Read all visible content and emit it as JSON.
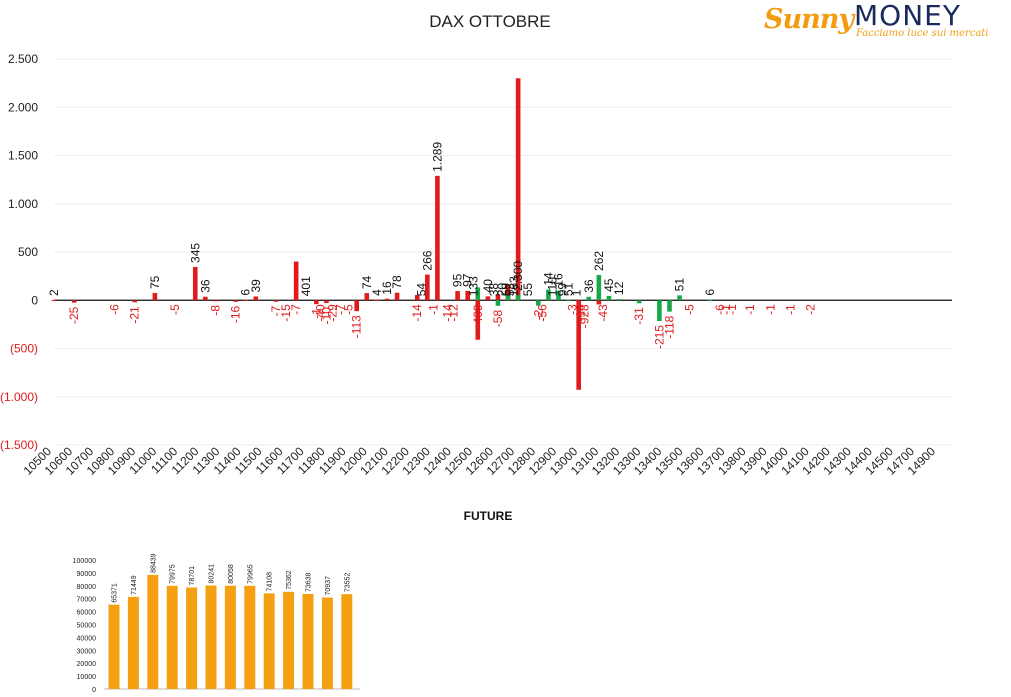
{
  "title": "DAX OTTOBRE",
  "logo": {
    "brand_a": "Sunny",
    "brand_b": "MONEY",
    "tagline": "Facciamo luce sui mercati"
  },
  "colors": {
    "call": "#e01b1b",
    "put": "#18a84a",
    "future_bar": "#f5a011"
  },
  "chart_data": [
    {
      "type": "bar",
      "title": "DAX OTTOBRE",
      "ylim": [
        -1500,
        2500
      ],
      "y_ticks": [
        2500,
        2000,
        1500,
        1000,
        500,
        0,
        -500,
        -1000,
        -1500
      ],
      "y_tick_labels": [
        "2.500",
        "2.000",
        "1.500",
        "1.000",
        "500",
        "0",
        "(500)",
        "(1.000)",
        "(1.500)"
      ],
      "x_tick_labels": [
        "10500",
        "10600",
        "10700",
        "10800",
        "10900",
        "11000",
        "11100",
        "11200",
        "11300",
        "11400",
        "11500",
        "11600",
        "11700",
        "11800",
        "11900",
        "12000",
        "12100",
        "12200",
        "12300",
        "12400",
        "12500",
        "12600",
        "12700",
        "12800",
        "12900",
        "13000",
        "13100",
        "13200",
        "13300",
        "13400",
        "13500",
        "13600",
        "13700",
        "13800",
        "13900",
        "14000",
        "14100",
        "14200",
        "14300",
        "14400",
        "14500",
        "14700",
        "14900"
      ],
      "grid": true,
      "series": [
        {
          "color": "#e01b1b",
          "points": [
            {
              "x": 10500,
              "y": 2
            },
            {
              "x": 10600,
              "y": -25
            },
            {
              "x": 10900,
              "y": -21
            },
            {
              "x": 11000,
              "y": 75
            },
            {
              "x": 11200,
              "y": 345
            },
            {
              "x": 11250,
              "y": 36
            },
            {
              "x": 11300,
              "y": -8
            },
            {
              "x": 11400,
              "y": -16
            },
            {
              "x": 11450,
              "y": 6
            },
            {
              "x": 11500,
              "y": 39
            },
            {
              "x": 11600,
              "y": -15
            },
            {
              "x": 11700,
              "y": 401
            },
            {
              "x": 11800,
              "y": -40
            },
            {
              "x": 11850,
              "y": -29
            },
            {
              "x": 12000,
              "y": -113
            },
            {
              "x": 12050,
              "y": 74
            },
            {
              "x": 12100,
              "y": 4
            },
            {
              "x": 12150,
              "y": 16
            },
            {
              "x": 12200,
              "y": 78
            },
            {
              "x": 12300,
              "y": 54
            },
            {
              "x": 12350,
              "y": 266
            },
            {
              "x": 12400,
              "y": 1289
            },
            {
              "x": 12500,
              "y": 95
            },
            {
              "x": 12550,
              "y": 97
            },
            {
              "x": 12600,
              "y": -409
            },
            {
              "x": 12650,
              "y": 40
            },
            {
              "x": 12700,
              "y": 59
            },
            {
              "x": 12750,
              "y": 163
            },
            {
              "x": 12800,
              "y": 2300
            },
            {
              "x": 13100,
              "y": -928
            },
            {
              "x": 13200,
              "y": -43
            }
          ]
        },
        {
          "color": "#18a84a",
          "points": [
            {
              "x": 12600,
              "y": 133
            },
            {
              "x": 12700,
              "y": -58
            },
            {
              "x": 12750,
              "y": 53
            },
            {
              "x": 12800,
              "y": 55
            },
            {
              "x": 12900,
              "y": -56
            },
            {
              "x": 12950,
              "y": 110
            },
            {
              "x": 13000,
              "y": 99
            },
            {
              "x": 13050,
              "y": 1
            },
            {
              "x": 13150,
              "y": 36
            },
            {
              "x": 13200,
              "y": 262
            },
            {
              "x": 13250,
              "y": 45
            },
            {
              "x": 13300,
              "y": 12
            },
            {
              "x": 13400,
              "y": -31
            },
            {
              "x": 13500,
              "y": -215
            },
            {
              "x": 13550,
              "y": -118
            },
            {
              "x": 13600,
              "y": 51
            },
            {
              "x": 13750,
              "y": 6
            }
          ]
        }
      ],
      "data_labels": [
        {
          "x": 10500,
          "text": "2"
        },
        {
          "x": 10600,
          "text": "-25"
        },
        {
          "x": 10800,
          "text": "-6"
        },
        {
          "x": 10900,
          "text": "-21"
        },
        {
          "x": 11000,
          "text": "75"
        },
        {
          "x": 11100,
          "text": "-5"
        },
        {
          "x": 11200,
          "text": "345"
        },
        {
          "x": 11250,
          "text": "36"
        },
        {
          "x": 11300,
          "text": "-8"
        },
        {
          "x": 11400,
          "text": "-16"
        },
        {
          "x": 11450,
          "text": "6"
        },
        {
          "x": 11500,
          "text": "39"
        },
        {
          "x": 11600,
          "text": "-7"
        },
        {
          "x": 11650,
          "text": "-15"
        },
        {
          "x": 11700,
          "text": "-7"
        },
        {
          "x": 11750,
          "text": "401"
        },
        {
          "x": 11800,
          "text": "-1"
        },
        {
          "x": 11820,
          "text": "-40"
        },
        {
          "x": 11850,
          "text": "-10"
        },
        {
          "x": 11880,
          "text": "-29"
        },
        {
          "x": 11920,
          "text": "-7"
        },
        {
          "x": 11960,
          "text": "-5"
        },
        {
          "x": 12000,
          "text": "-113"
        },
        {
          "x": 12050,
          "text": "74"
        },
        {
          "x": 12100,
          "text": "4"
        },
        {
          "x": 12150,
          "text": "16"
        },
        {
          "x": 12200,
          "text": "78"
        },
        {
          "x": 12300,
          "text": "-14"
        },
        {
          "x": 12320,
          "text": "54"
        },
        {
          "x": 12350,
          "text": "266"
        },
        {
          "x": 12380,
          "text": "-1"
        },
        {
          "x": 12400,
          "text": "1.289"
        },
        {
          "x": 12450,
          "text": "-14"
        },
        {
          "x": 12480,
          "text": "-12"
        },
        {
          "x": 12500,
          "text": "95"
        },
        {
          "x": 12550,
          "text": "97"
        },
        {
          "x": 12580,
          "text": "133"
        },
        {
          "x": 12600,
          "text": "-409"
        },
        {
          "x": 12650,
          "text": "40"
        },
        {
          "x": 12680,
          "text": "38"
        },
        {
          "x": 12700,
          "text": "-58"
        },
        {
          "x": 12720,
          "text": "20"
        },
        {
          "x": 12740,
          "text": "59"
        },
        {
          "x": 12760,
          "text": "53"
        },
        {
          "x": 12780,
          "text": "163"
        },
        {
          "x": 12800,
          "text": "2.300"
        },
        {
          "x": 12850,
          "text": "55"
        },
        {
          "x": 12900,
          "text": "-2"
        },
        {
          "x": 12920,
          "text": "-56"
        },
        {
          "x": 12950,
          "text": "14"
        },
        {
          "x": 12970,
          "text": "110"
        },
        {
          "x": 13000,
          "text": "16"
        },
        {
          "x": 13020,
          "text": "99"
        },
        {
          "x": 13050,
          "text": "51"
        },
        {
          "x": 13070,
          "text": "-3"
        },
        {
          "x": 13090,
          "text": "1"
        },
        {
          "x": 13110,
          "text": "-14"
        },
        {
          "x": 13130,
          "text": "-928"
        },
        {
          "x": 13150,
          "text": "36"
        },
        {
          "x": 13200,
          "text": "262"
        },
        {
          "x": 13220,
          "text": "-43"
        },
        {
          "x": 13250,
          "text": "45"
        },
        {
          "x": 13300,
          "text": "12"
        },
        {
          "x": 13400,
          "text": "-31"
        },
        {
          "x": 13500,
          "text": "-215"
        },
        {
          "x": 13550,
          "text": "-118"
        },
        {
          "x": 13600,
          "text": "51"
        },
        {
          "x": 13650,
          "text": "-5"
        },
        {
          "x": 13750,
          "text": "6"
        },
        {
          "x": 13800,
          "text": "-6"
        },
        {
          "x": 13830,
          "text": "-1"
        },
        {
          "x": 13860,
          "text": "-1"
        },
        {
          "x": 13950,
          "text": "-1"
        },
        {
          "x": 14050,
          "text": "-1"
        },
        {
          "x": 14150,
          "text": "-1"
        },
        {
          "x": 14250,
          "text": "-2"
        }
      ]
    },
    {
      "type": "bar",
      "title": "FUTURE",
      "ylim": [
        0,
        100000
      ],
      "y_ticks": [
        0,
        10000,
        20000,
        30000,
        40000,
        50000,
        60000,
        70000,
        80000,
        90000,
        100000
      ],
      "values": [
        65371,
        71449,
        88439,
        79975,
        78701,
        80241,
        80058,
        79965,
        74108,
        75362,
        73638,
        70937,
        73552
      ]
    }
  ]
}
